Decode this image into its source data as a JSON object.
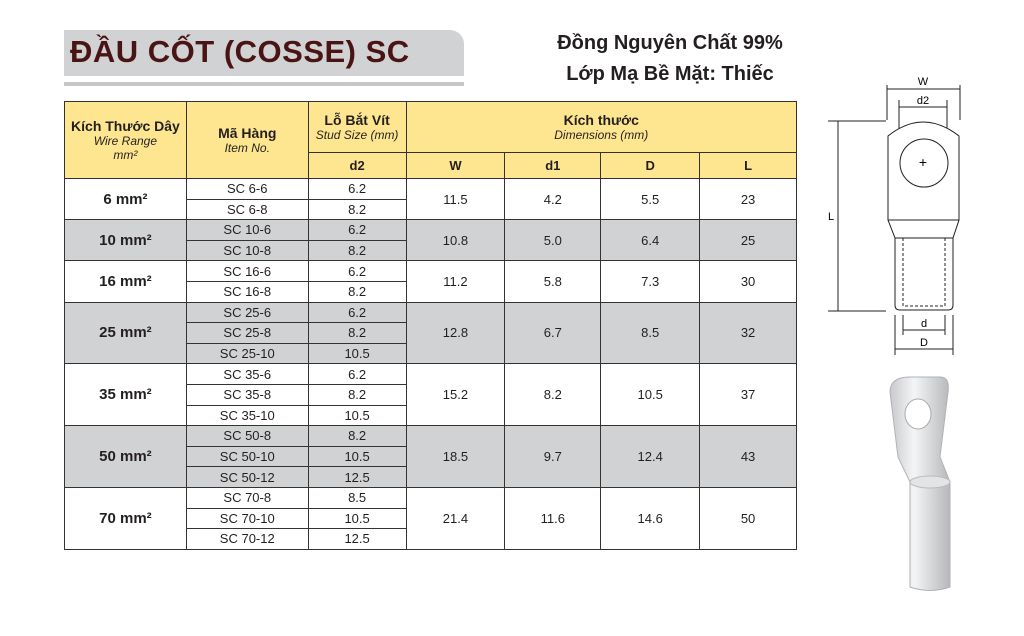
{
  "title": "ĐẦU CỐT (COSSE) SC",
  "subtitle_line1": "Đồng Nguyên Chất 99%",
  "subtitle_line2": "Lớp Mạ Bề Mặt:  Thiếc",
  "header": {
    "wire_vi": "Kích Thước Dây",
    "wire_en": "Wire Range",
    "wire_unit": "mm²",
    "item_vi": "Mã Hàng",
    "item_en": "Item No.",
    "stud_vi": "Lỗ Bắt Vít",
    "stud_en": "Stud Size  (mm)",
    "dim_vi": "Kích thước",
    "dim_en": "Dimensions  (mm)",
    "cols": [
      "d2",
      "W",
      "d1",
      "D",
      "L"
    ]
  },
  "groups": [
    {
      "wire": "6 mm²",
      "items": [
        [
          "SC 6-6",
          "6.2"
        ],
        [
          "SC 6-8",
          "8.2"
        ]
      ],
      "W": "11.5",
      "d1": "4.2",
      "D": "5.5",
      "L": "23"
    },
    {
      "wire": "10 mm²",
      "items": [
        [
          "SC 10-6",
          "6.2"
        ],
        [
          "SC 10-8",
          "8.2"
        ]
      ],
      "W": "10.8",
      "d1": "5.0",
      "D": "6.4",
      "L": "25"
    },
    {
      "wire": "16 mm²",
      "items": [
        [
          "SC 16-6",
          "6.2"
        ],
        [
          "SC 16-8",
          "8.2"
        ]
      ],
      "W": "11.2",
      "d1": "5.8",
      "D": "7.3",
      "L": "30"
    },
    {
      "wire": "25 mm²",
      "items": [
        [
          "SC 25-6",
          "6.2"
        ],
        [
          "SC 25-8",
          "8.2"
        ],
        [
          "SC 25-10",
          "10.5"
        ]
      ],
      "W": "12.8",
      "d1": "6.7",
      "D": "8.5",
      "L": "32"
    },
    {
      "wire": "35 mm²",
      "items": [
        [
          "SC 35-6",
          "6.2"
        ],
        [
          "SC 35-8",
          "8.2"
        ],
        [
          "SC 35-10",
          "10.5"
        ]
      ],
      "W": "15.2",
      "d1": "8.2",
      "D": "10.5",
      "L": "37"
    },
    {
      "wire": "50 mm²",
      "items": [
        [
          "SC 50-8",
          "8.2"
        ],
        [
          "SC 50-10",
          "10.5"
        ],
        [
          "SC 50-12",
          "12.5"
        ]
      ],
      "W": "18.5",
      "d1": "9.7",
      "D": "12.4",
      "L": "43"
    },
    {
      "wire": "70 mm²",
      "items": [
        [
          "SC 70-8",
          "8.5"
        ],
        [
          "SC 70-10",
          "10.5"
        ],
        [
          "SC 70-12",
          "12.5"
        ]
      ],
      "W": "21.4",
      "d1": "11.6",
      "D": "14.6",
      "L": "50"
    }
  ],
  "diagram": {
    "W": "W",
    "d2": "d2",
    "L": "L",
    "d": "d",
    "D": "D"
  },
  "colors": {
    "header": "#fde68f",
    "title": "#4a1414",
    "gray_row": "#d1d2d4"
  }
}
